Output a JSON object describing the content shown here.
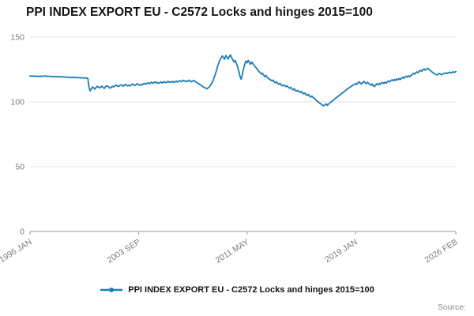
{
  "page": {
    "title": "PPI INDEX EXPORT EU - C2572 Locks and hinges 2015=100",
    "source_label": "Source:"
  },
  "legend": {
    "label": "PPI INDEX EXPORT EU - C2572 Locks and hinges 2015=100"
  },
  "chart_data": {
    "type": "line",
    "title": "PPI INDEX EXPORT EU - C2572 Locks and hinges 2015=100",
    "xlabel": "",
    "ylabel": "",
    "ylim": [
      0,
      150
    ],
    "y_ticks": [
      0,
      50,
      100,
      150
    ],
    "grid": "horizontal",
    "legend_position": "bottom",
    "line_color": "#1d7db7",
    "x_start": "1996-01",
    "x_end": "2026-02",
    "frequency": "monthly",
    "n_points": 362,
    "x_ticks": [
      {
        "label": "1996 JAN",
        "month_index": 0
      },
      {
        "label": "2003 SEP",
        "month_index": 92
      },
      {
        "label": "2011 MAY",
        "month_index": 184
      },
      {
        "label": "2019 JAN",
        "month_index": 276
      },
      {
        "label": "2026 FEB",
        "month_index": 361
      }
    ],
    "series": [
      {
        "name": "PPI INDEX EXPORT EU - C2572 Locks and hinges 2015=100",
        "values": [
          120.1,
          119.8,
          119.9,
          120.0,
          119.7,
          119.8,
          119.9,
          119.6,
          119.8,
          119.7,
          119.9,
          119.8,
          119.9,
          120.1,
          119.8,
          119.7,
          119.9,
          119.6,
          119.5,
          119.7,
          119.4,
          119.6,
          119.5,
          119.4,
          119.6,
          119.3,
          119.5,
          119.2,
          119.4,
          119.1,
          119.3,
          119.0,
          119.2,
          118.9,
          119.1,
          118.8,
          119.0,
          118.8,
          118.9,
          118.7,
          118.9,
          118.6,
          118.8,
          118.5,
          118.7,
          118.4,
          118.6,
          118.3,
          118.4,
          118.2,
          110.9,
          108.5,
          110.2,
          111.5,
          110.8,
          109.9,
          111.2,
          112.0,
          111.4,
          110.8,
          111.5,
          112.2,
          111.0,
          110.4,
          111.8,
          112.5,
          111.9,
          111.2,
          110.6,
          111.4,
          112.0,
          111.6,
          112.4,
          113.0,
          112.2,
          111.8,
          112.6,
          113.2,
          112.8,
          112.0,
          112.9,
          113.5,
          112.7,
          112.3,
          113.0,
          112.4,
          113.2,
          113.8,
          113.1,
          112.6,
          113.4,
          114.0,
          113.3,
          112.8,
          113.6,
          113.0,
          113.8,
          114.4,
          113.6,
          114.2,
          114.8,
          114.0,
          114.6,
          115.2,
          114.4,
          114.9,
          115.5,
          114.7,
          115.0,
          114.3,
          114.9,
          115.4,
          114.6,
          115.1,
          115.7,
          114.8,
          115.3,
          115.9,
          115.1,
          115.6,
          115.2,
          115.8,
          115.0,
          115.5,
          116.1,
          115.3,
          115.9,
          116.4,
          115.6,
          116.2,
          116.7,
          115.9,
          116.3,
          115.7,
          116.2,
          116.8,
          116.0,
          115.4,
          116.1,
          116.6,
          115.8,
          115.2,
          114.6,
          114.0,
          113.4,
          112.8,
          112.2,
          111.6,
          111.0,
          110.6,
          110.2,
          110.8,
          111.6,
          112.8,
          114.2,
          116.0,
          118.5,
          121.0,
          124.0,
          127.5,
          130.0,
          132.5,
          134.0,
          135.5,
          134.2,
          133.0,
          135.8,
          134.5,
          133.2,
          135.0,
          136.2,
          134.0,
          132.5,
          130.8,
          132.0,
          129.5,
          127.0,
          123.5,
          119.8,
          117.5,
          121.0,
          125.5,
          128.8,
          131.5,
          130.2,
          132.0,
          130.5,
          129.0,
          130.8,
          129.5,
          128.2,
          127.0,
          126.0,
          124.8,
          123.5,
          122.8,
          121.5,
          122.2,
          120.8,
          119.5,
          120.4,
          119.0,
          118.2,
          117.5,
          117.0,
          116.2,
          116.8,
          115.5,
          114.8,
          115.4,
          114.2,
          113.6,
          114.4,
          113.0,
          112.4,
          113.1,
          112.5,
          111.8,
          112.4,
          111.2,
          110.6,
          111.3,
          110.0,
          109.4,
          110.2,
          108.8,
          108.2,
          108.9,
          108.0,
          107.4,
          108.1,
          106.8,
          106.2,
          106.9,
          105.6,
          105.0,
          105.8,
          104.4,
          103.8,
          104.5,
          103.5,
          102.8,
          101.9,
          101.0,
          100.2,
          99.5,
          98.8,
          98.2,
          97.5,
          97.0,
          97.8,
          98.5,
          97.4,
          98.2,
          99.0,
          99.8,
          100.5,
          101.2,
          102.0,
          102.8,
          103.5,
          104.2,
          104.9,
          105.6,
          106.3,
          107.0,
          107.8,
          108.5,
          109.2,
          110.0,
          110.6,
          111.2,
          111.8,
          112.4,
          113.0,
          113.6,
          114.2,
          113.5,
          114.8,
          115.5,
          114.6,
          113.8,
          115.0,
          115.8,
          114.9,
          114.0,
          115.2,
          114.4,
          113.6,
          112.8,
          113.9,
          112.5,
          111.8,
          112.9,
          114.0,
          113.2,
          114.3,
          113.5,
          114.6,
          115.0,
          114.2,
          115.3,
          114.5,
          115.6,
          116.2,
          115.4,
          116.5,
          117.1,
          116.3,
          117.4,
          116.6,
          117.7,
          117.0,
          118.1,
          117.3,
          118.4,
          119.0,
          118.2,
          119.3,
          119.9,
          119.1,
          120.2,
          119.4,
          120.5,
          121.2,
          122.0,
          121.4,
          122.6,
          123.2,
          122.5,
          123.8,
          124.4,
          123.6,
          124.8,
          125.4,
          124.6,
          125.2,
          126.0,
          125.3,
          124.5,
          123.8,
          123.0,
          122.4,
          121.8,
          121.2,
          120.8,
          121.5,
          122.0,
          121.4,
          120.9,
          121.6,
          122.2,
          121.8,
          122.5,
          121.9,
          122.6,
          123.0,
          122.4,
          122.8,
          123.2,
          122.8,
          123.4
        ]
      }
    ]
  }
}
